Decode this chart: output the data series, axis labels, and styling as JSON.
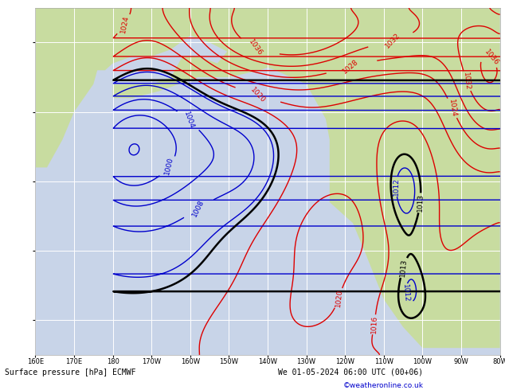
{
  "title_bottom": "Surface pressure [hPa] ECMWF",
  "datetime_str": "We 01-05-2024 06:00 UTC (00+06)",
  "copyright": "©weatheronline.co.uk",
  "figsize": [
    6.34,
    4.9
  ],
  "dpi": 100,
  "bg_ocean": "#c8d4e8",
  "bg_land": "#c8dca0",
  "grid_color": "#ffffff",
  "red_color": "#dd0000",
  "blue_color": "#0000cc",
  "black_color": "#000000"
}
